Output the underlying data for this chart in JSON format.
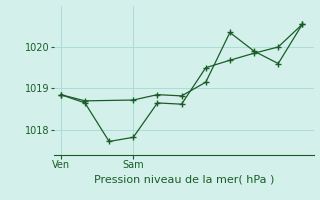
{
  "title": "Pression niveau de la mer( hPa )",
  "background_color": "#d4f0eb",
  "grid_color": "#aaddd6",
  "line_color": "#1a5c28",
  "ylim": [
    1017.4,
    1021.0
  ],
  "yticks": [
    1018,
    1019,
    1020
  ],
  "ylabel_fontsize": 7,
  "xlabel_fontsize": 8,
  "series1_x": [
    0,
    1,
    3,
    4,
    5,
    6,
    7,
    8,
    9,
    10
  ],
  "series1_y": [
    1018.85,
    1018.7,
    1018.72,
    1018.85,
    1018.82,
    1019.15,
    1020.35,
    1019.9,
    1019.6,
    1020.55
  ],
  "series2_x": [
    0,
    1,
    2,
    3,
    4,
    5,
    6,
    7,
    8,
    9,
    10
  ],
  "series2_y": [
    1018.85,
    1018.65,
    1017.72,
    1017.82,
    1018.65,
    1018.62,
    1019.5,
    1019.68,
    1019.85,
    1020.0,
    1020.55
  ],
  "day_labels": [
    [
      "Ven",
      0
    ],
    [
      "Sam",
      3
    ]
  ],
  "xtick_positions": [
    0,
    3
  ],
  "xlim": [
    -0.3,
    10.5
  ]
}
